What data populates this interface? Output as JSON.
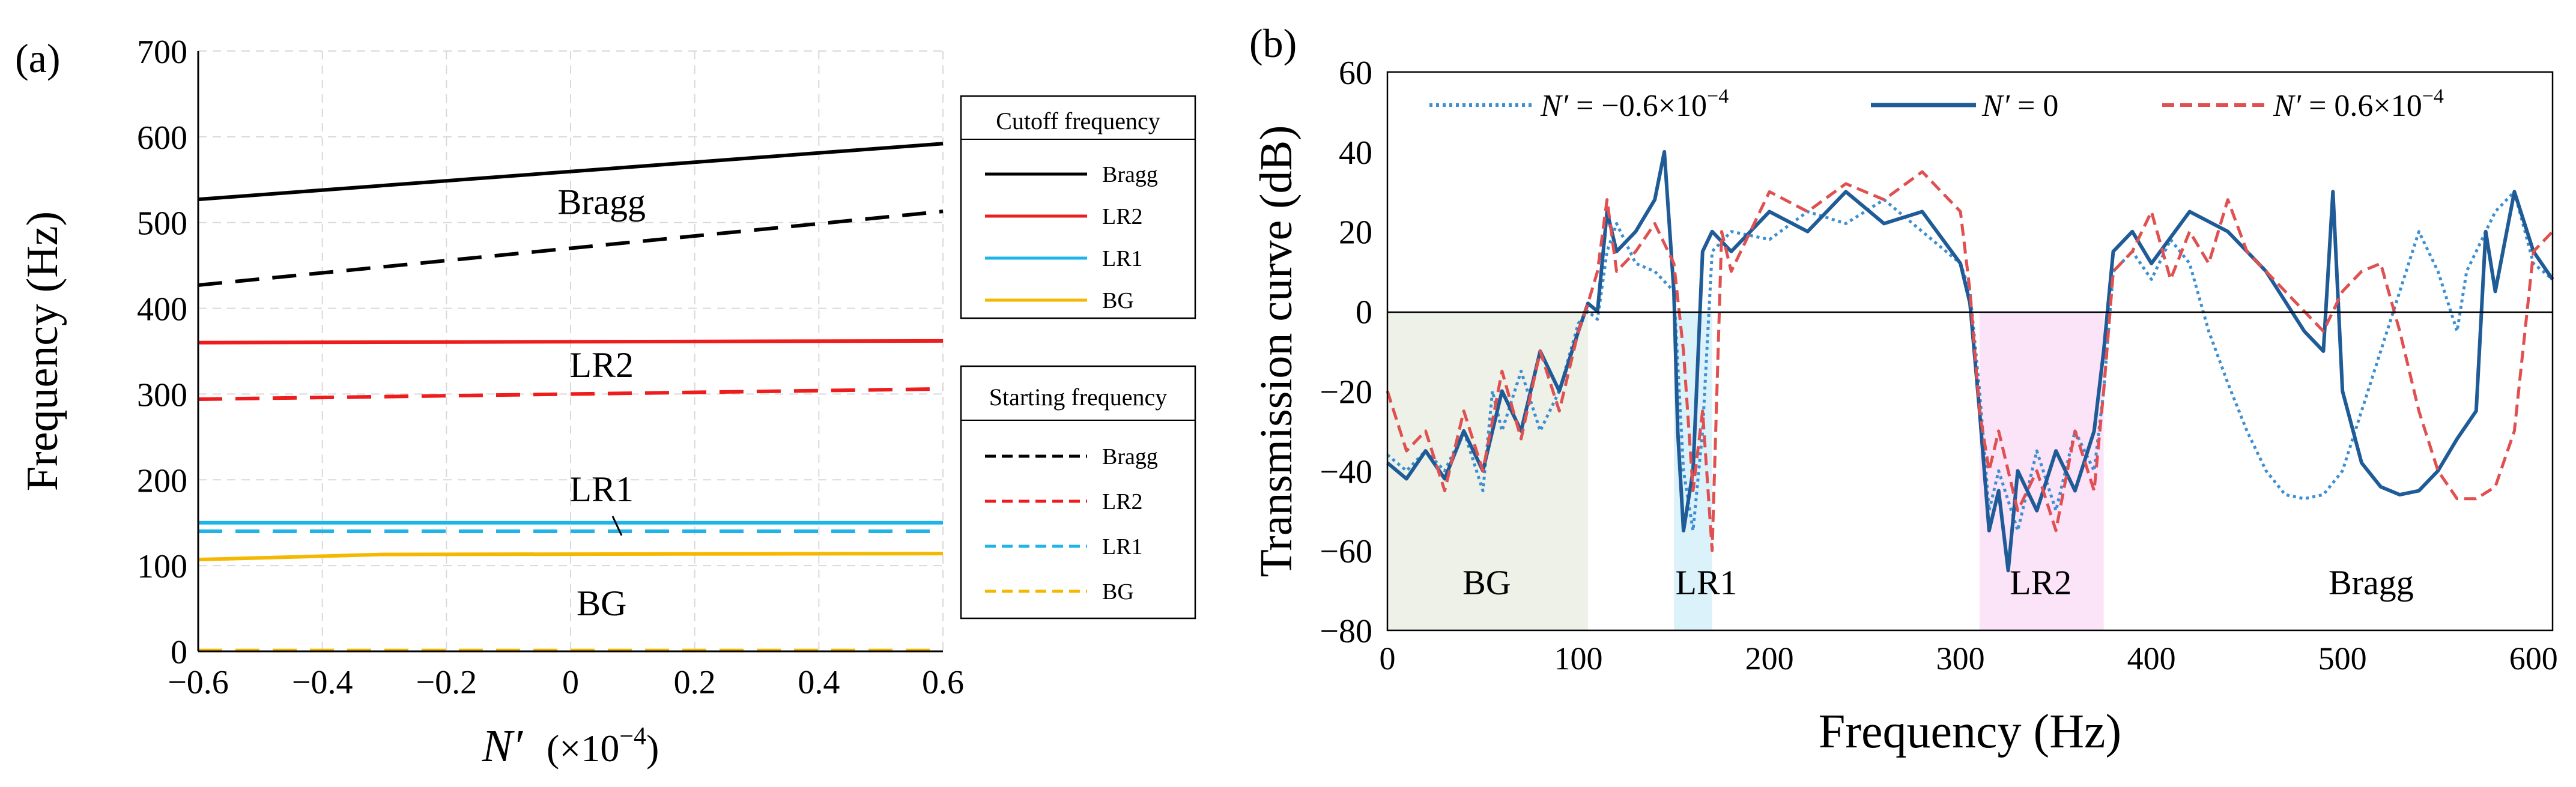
{
  "chart_data": [
    {
      "panel": "(a)",
      "type": "line",
      "xlabel_main": "N′",
      "xlabel_unit": "(×10",
      "xlabel_exp": "−4",
      "xlabel_close": ")",
      "ylabel": "Frequency (Hz)",
      "xlim": [
        -0.6,
        0.6
      ],
      "ylim": [
        0,
        700
      ],
      "xticks": [
        "−0.6",
        "−0.4",
        "−0.2",
        "0",
        "0.2",
        "0.4",
        "0.6"
      ],
      "yticks": [
        "0",
        "100",
        "200",
        "300",
        "400",
        "500",
        "600",
        "700"
      ],
      "grid": true,
      "series": [
        {
          "name": "Bragg",
          "group": "Cutoff frequency",
          "style": "solid",
          "color": "#000000",
          "x": [
            -0.6,
            0.6
          ],
          "y": [
            527,
            592
          ]
        },
        {
          "name": "Bragg",
          "group": "Starting frequency",
          "style": "dashed",
          "color": "#000000",
          "x": [
            -0.6,
            0.6
          ],
          "y": [
            427,
            513
          ]
        },
        {
          "name": "LR2",
          "group": "Cutoff frequency",
          "style": "solid",
          "color": "#ee1c1c",
          "x": [
            -0.6,
            0.6
          ],
          "y": [
            360,
            362
          ]
        },
        {
          "name": "LR2",
          "group": "Starting frequency",
          "style": "dashed",
          "color": "#ee1c1c",
          "x": [
            -0.6,
            0.6
          ],
          "y": [
            294,
            306
          ]
        },
        {
          "name": "LR1",
          "group": "Cutoff frequency",
          "style": "solid",
          "color": "#1fb4e8",
          "x": [
            -0.6,
            0.6
          ],
          "y": [
            150,
            150
          ]
        },
        {
          "name": "LR1",
          "group": "Starting frequency",
          "style": "dashed",
          "color": "#1fb4e8",
          "x": [
            -0.6,
            0.6
          ],
          "y": [
            140,
            140
          ]
        },
        {
          "name": "BG",
          "group": "Cutoff frequency",
          "style": "solid",
          "color": "#f5b800",
          "x": [
            -0.6,
            -0.3,
            0.6
          ],
          "y": [
            107,
            113,
            114
          ]
        },
        {
          "name": "BG",
          "group": "Starting frequency",
          "style": "dashed",
          "color": "#f5b800",
          "x": [
            -0.6,
            0.6
          ],
          "y": [
            1,
            1
          ]
        }
      ],
      "annotations": [
        {
          "text": "Bragg",
          "x": 0.05,
          "y": 510
        },
        {
          "text": "LR2",
          "x": 0.05,
          "y": 320
        },
        {
          "text": "LR1",
          "x": 0.05,
          "y": 175
        },
        {
          "text": "BG",
          "x": 0.05,
          "y": 42
        }
      ],
      "legend_cutoff_title": "Cutoff frequency",
      "legend_starting_title": "Starting frequency",
      "legend_cutoff": [
        "Bragg",
        "LR2",
        "LR1",
        "BG"
      ],
      "legend_starting": [
        "Bragg",
        "LR2",
        "LR1",
        "BG"
      ]
    },
    {
      "panel": "(b)",
      "type": "line",
      "xlabel": "Frequency (Hz)",
      "ylabel": "Transmission curve (dB)",
      "xlim": [
        0,
        610
      ],
      "ylim": [
        -80,
        60
      ],
      "xticks": [
        "0",
        "100",
        "200",
        "300",
        "400",
        "500",
        "600"
      ],
      "yticks": [
        "−80",
        "−60",
        "−40",
        "−20",
        "0",
        "20",
        "40",
        "60"
      ],
      "grid": false,
      "legend": [
        {
          "prefix": "N′",
          "label": " = −0.6×10",
          "exp": "−4",
          "style": "dotted",
          "color": "#3d8fd1"
        },
        {
          "prefix": "N′",
          "label": " = 0",
          "exp": "",
          "style": "solid",
          "color": "#1f5b96"
        },
        {
          "prefix": "N′",
          "label": " = 0.6×10",
          "exp": "−4",
          "style": "dashed",
          "color": "#e05050"
        }
      ],
      "bands": [
        {
          "name": "BG",
          "range": [
            0,
            105
          ],
          "color": "#eef1e7"
        },
        {
          "name": "LR1",
          "range": [
            150,
            170
          ],
          "color": "#dcf2fb"
        },
        {
          "name": "LR2",
          "range": [
            310,
            375
          ],
          "color": "#fbe3f8"
        },
        {
          "name": "Bragg",
          "range": [
            430,
            610
          ],
          "color": "none"
        }
      ],
      "band_labels": [
        {
          "text": "BG",
          "x": 52
        },
        {
          "text": "LR1",
          "x": 167
        },
        {
          "text": "LR2",
          "x": 342
        },
        {
          "text": "Bragg",
          "x": 515
        }
      ],
      "series": [
        {
          "name": "N′ = −0.6×10⁻⁴",
          "style": "dotted",
          "color": "#3d8fd1",
          "x": [
            0,
            10,
            20,
            30,
            40,
            50,
            55,
            60,
            70,
            80,
            90,
            100,
            105,
            110,
            115,
            120,
            130,
            140,
            150,
            155,
            160,
            165,
            170,
            180,
            200,
            220,
            240,
            260,
            280,
            300,
            305,
            310,
            315,
            320,
            330,
            340,
            350,
            360,
            370,
            375,
            380,
            390,
            400,
            410,
            420,
            430,
            440,
            450,
            460,
            470,
            480,
            490,
            500,
            510,
            520,
            530,
            540,
            550,
            560,
            565,
            570,
            580,
            590,
            600,
            610
          ],
          "y": [
            -36,
            -40,
            -35,
            -40,
            -30,
            -45,
            -20,
            -30,
            -15,
            -30,
            -20,
            -3,
            0,
            -2,
            15,
            22,
            12,
            10,
            5,
            -40,
            -55,
            -30,
            15,
            20,
            18,
            25,
            22,
            28,
            20,
            12,
            5,
            -20,
            -50,
            -40,
            -55,
            -35,
            -50,
            -30,
            -40,
            -20,
            10,
            15,
            8,
            18,
            12,
            -5,
            -18,
            -30,
            -40,
            -46,
            -47,
            -46,
            -40,
            -25,
            -10,
            5,
            20,
            10,
            -5,
            10,
            15,
            25,
            30,
            12,
            8
          ]
        },
        {
          "name": "N′ = 0",
          "style": "solid",
          "color": "#1f5b96",
          "x": [
            0,
            10,
            20,
            30,
            40,
            50,
            60,
            70,
            80,
            90,
            100,
            105,
            110,
            115,
            120,
            130,
            140,
            145,
            150,
            152,
            155,
            160,
            165,
            170,
            180,
            200,
            220,
            240,
            260,
            280,
            300,
            305,
            310,
            315,
            320,
            325,
            330,
            340,
            350,
            360,
            370,
            375,
            380,
            390,
            400,
            420,
            440,
            460,
            480,
            490,
            495,
            500,
            510,
            520,
            530,
            540,
            550,
            560,
            570,
            575,
            580,
            590,
            600,
            610
          ],
          "y": [
            -38,
            -42,
            -35,
            -42,
            -30,
            -40,
            -20,
            -30,
            -10,
            -20,
            -5,
            2,
            0,
            25,
            15,
            20,
            28,
            40,
            5,
            -30,
            -55,
            -40,
            15,
            20,
            15,
            25,
            20,
            30,
            22,
            25,
            12,
            2,
            -25,
            -55,
            -45,
            -65,
            -40,
            -50,
            -35,
            -45,
            -30,
            -10,
            15,
            20,
            12,
            25,
            20,
            10,
            -5,
            -10,
            30,
            -20,
            -38,
            -44,
            -46,
            -45,
            -40,
            -32,
            -25,
            20,
            5,
            30,
            15,
            8
          ]
        },
        {
          "name": "N′ = 0.6×10⁻⁴",
          "style": "dashed",
          "color": "#e05050",
          "x": [
            0,
            10,
            20,
            30,
            40,
            50,
            60,
            70,
            80,
            90,
            100,
            105,
            110,
            115,
            120,
            130,
            140,
            150,
            155,
            160,
            165,
            170,
            175,
            180,
            200,
            220,
            240,
            260,
            280,
            300,
            305,
            310,
            315,
            320,
            330,
            340,
            350,
            360,
            370,
            375,
            380,
            390,
            400,
            410,
            420,
            430,
            440,
            450,
            460,
            470,
            480,
            490,
            500,
            510,
            520,
            530,
            540,
            550,
            560,
            570,
            580,
            590,
            600,
            610
          ],
          "y": [
            -20,
            -35,
            -30,
            -45,
            -25,
            -40,
            -15,
            -32,
            -10,
            -25,
            -5,
            2,
            10,
            28,
            10,
            15,
            22,
            12,
            -10,
            -45,
            -25,
            -60,
            20,
            10,
            30,
            25,
            32,
            28,
            35,
            25,
            5,
            -25,
            -40,
            -30,
            -50,
            -40,
            -55,
            -30,
            -45,
            -20,
            10,
            15,
            25,
            8,
            20,
            12,
            28,
            15,
            10,
            5,
            0,
            -5,
            5,
            10,
            12,
            -5,
            -25,
            -40,
            -47,
            -47,
            -44,
            -30,
            15,
            20
          ]
        }
      ]
    }
  ]
}
